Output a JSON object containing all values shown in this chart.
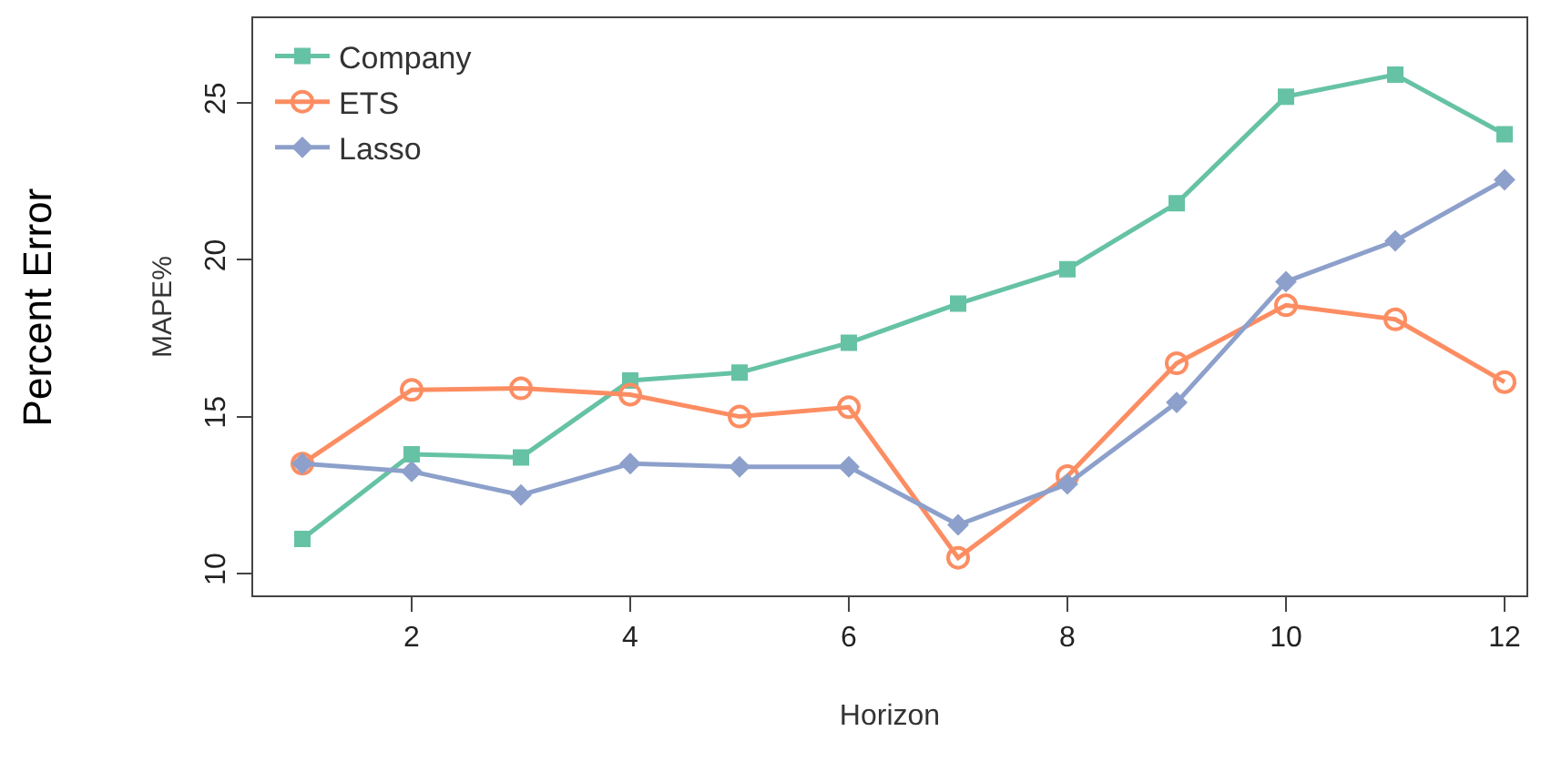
{
  "chart_data": {
    "type": "line",
    "xlabel": "Horizon",
    "ylabel": "MAPE%",
    "annotations": [
      "Percent Error"
    ],
    "x": [
      1,
      2,
      3,
      4,
      5,
      6,
      7,
      8,
      9,
      10,
      11,
      12
    ],
    "series": [
      {
        "name": "Company",
        "color": "#66c2a5",
        "marker": "square",
        "values": [
          11.1,
          13.8,
          13.7,
          16.15,
          16.4,
          17.35,
          18.6,
          19.7,
          21.8,
          25.2,
          25.9,
          24.0
        ]
      },
      {
        "name": "ETS",
        "color": "#fc8d62",
        "marker": "circle-open",
        "values": [
          13.5,
          15.85,
          15.9,
          15.7,
          15.0,
          15.3,
          10.5,
          13.1,
          16.7,
          18.55,
          18.1,
          16.1
        ]
      },
      {
        "name": "Lasso",
        "color": "#8da0cb",
        "marker": "diamond",
        "values": [
          13.5,
          13.25,
          12.5,
          13.5,
          13.4,
          13.4,
          11.55,
          12.85,
          15.45,
          19.3,
          20.6,
          22.55
        ]
      }
    ],
    "xlim": [
      0.55,
      12.2
    ],
    "ylim": [
      9.3,
      27.7
    ],
    "xticks": [
      2,
      4,
      6,
      8,
      10,
      12
    ],
    "yticks": [
      10,
      15,
      20,
      25
    ],
    "legend": "top left",
    "line_style": "solid"
  }
}
